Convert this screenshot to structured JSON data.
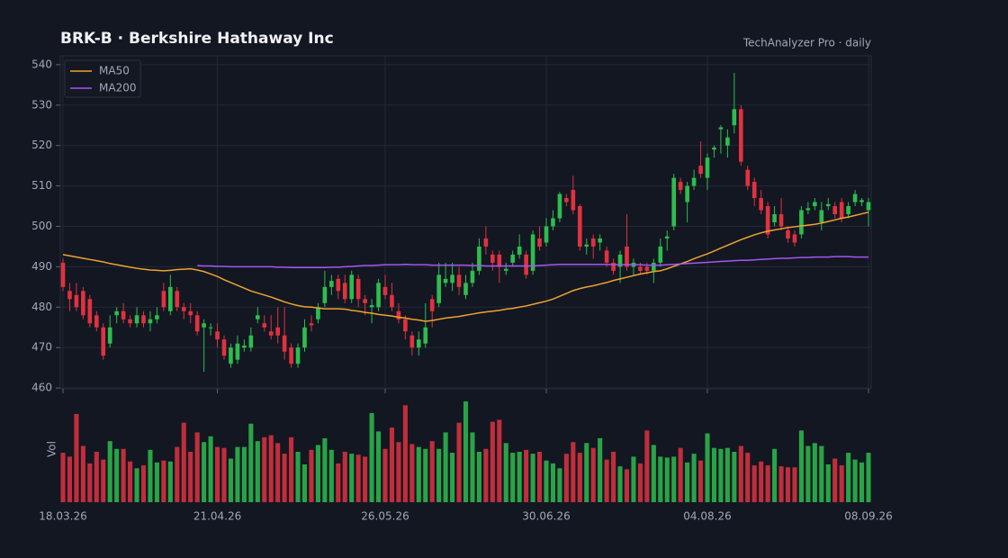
{
  "chart_data": {
    "type": "candlestick",
    "title": "BRK-B  ·  Berkshire Hathaway Inc",
    "subtitle": "TechAnalyzer Pro · daily",
    "volume_label": "Vol",
    "up_color": "#2dbd4e",
    "down_color": "#e0323f",
    "grid": true,
    "legend": "top-left",
    "ylim": [
      459.8,
      542.2
    ],
    "yticks": [
      460,
      470,
      480,
      490,
      500,
      510,
      520,
      530,
      540
    ],
    "categories": [
      "18.03.26",
      null,
      null,
      null,
      null,
      null,
      null,
      null,
      null,
      null,
      null,
      null,
      null,
      null,
      null,
      null,
      null,
      null,
      null,
      null,
      null,
      null,
      null,
      "21.04.26",
      null,
      null,
      null,
      null,
      null,
      null,
      null,
      null,
      null,
      null,
      null,
      null,
      null,
      null,
      null,
      null,
      null,
      null,
      null,
      null,
      null,
      null,
      null,
      null,
      "26.05.26",
      null,
      null,
      null,
      null,
      null,
      null,
      null,
      null,
      null,
      null,
      null,
      null,
      null,
      null,
      null,
      null,
      null,
      null,
      null,
      null,
      null,
      null,
      null,
      "30.06.26",
      null,
      null,
      null,
      null,
      null,
      null,
      null,
      null,
      null,
      null,
      null,
      null,
      null,
      null,
      null,
      null,
      null,
      null,
      null,
      null,
      null,
      null,
      null,
      "04.08.26",
      null,
      null,
      null,
      null,
      null,
      null,
      null,
      null,
      null,
      null,
      null,
      null,
      null,
      null,
      null,
      null,
      null,
      null,
      null,
      null,
      null,
      null,
      null,
      "08.09.26"
    ],
    "open": [
      491,
      484,
      483,
      484,
      482,
      478,
      475,
      471,
      478,
      479,
      477,
      476,
      478,
      476,
      477,
      484,
      479,
      484,
      480,
      479,
      478,
      475,
      475,
      474,
      472,
      466,
      467,
      470,
      470,
      477,
      476,
      474,
      475,
      473,
      470,
      466,
      470,
      476,
      477,
      481,
      485,
      487,
      486,
      482,
      487,
      482,
      480,
      480,
      485,
      483,
      479,
      477,
      473,
      470,
      471,
      482,
      481,
      486,
      486,
      488,
      483,
      486,
      489,
      497,
      493,
      493,
      489,
      491,
      493,
      493,
      489,
      497,
      496,
      500,
      502,
      507,
      509,
      505,
      495,
      497,
      496,
      494,
      491,
      490,
      495,
      490,
      490,
      490,
      489,
      491,
      497,
      500,
      511,
      506,
      510,
      515,
      512,
      519,
      524,
      520,
      525,
      529,
      514,
      511,
      507,
      505,
      501,
      503,
      499,
      498,
      498,
      504,
      505,
      501,
      505,
      505,
      506,
      503,
      506,
      506,
      504
    ],
    "high": [
      492,
      486,
      486,
      485,
      483,
      479,
      476,
      478,
      480,
      481,
      478,
      480,
      479,
      479,
      480,
      486,
      488,
      485,
      481,
      481,
      479,
      477,
      476,
      476,
      473,
      471,
      473,
      472,
      475,
      480,
      478,
      478,
      480,
      480,
      471,
      471,
      477,
      478,
      481,
      489,
      488,
      488,
      488,
      489,
      488,
      483,
      482,
      487,
      488,
      486,
      481,
      478,
      474,
      474,
      481,
      483,
      491,
      491,
      491,
      490,
      488,
      491,
      497,
      500,
      494,
      494,
      491,
      494,
      498,
      494,
      499,
      500,
      502,
      504,
      508.5,
      508,
      512.5,
      505.5,
      497,
      498,
      498,
      495,
      492,
      494,
      503,
      492,
      491,
      491,
      492,
      497,
      499,
      513,
      512,
      511,
      514,
      521,
      518,
      520,
      525,
      524,
      538,
      530,
      515,
      512,
      509,
      506,
      505,
      507,
      500,
      499,
      505,
      506,
      507,
      506,
      507,
      506,
      507,
      506,
      509,
      507,
      507
    ],
    "low": [
      484,
      479,
      479,
      477,
      475,
      474,
      467,
      470,
      476,
      476,
      475,
      475,
      475,
      474,
      476,
      479,
      478,
      479,
      477,
      476,
      473,
      464,
      473,
      470,
      467,
      465,
      466,
      469,
      469,
      476,
      474,
      472,
      471,
      467,
      465,
      465,
      469,
      474,
      476,
      480,
      483,
      482,
      481,
      481,
      480,
      478,
      476,
      479,
      482,
      479,
      476,
      472,
      468,
      468,
      470,
      475,
      480,
      485,
      484,
      483,
      482,
      485,
      488,
      493,
      489,
      486,
      488,
      490,
      492,
      487,
      488,
      494,
      495,
      499,
      501,
      505,
      503,
      494,
      493,
      492,
      494,
      490,
      488,
      486,
      489,
      488,
      488,
      488,
      486,
      490,
      494,
      499,
      508,
      501,
      509,
      512,
      509,
      517,
      518,
      517,
      523,
      515,
      509,
      505,
      503,
      497,
      500,
      499,
      496,
      495,
      497,
      503,
      504,
      499,
      504,
      502,
      501,
      502,
      505,
      505,
      500
    ],
    "close": [
      485,
      482,
      480,
      478,
      476,
      475,
      468,
      475,
      479,
      477,
      476,
      478,
      476,
      477,
      478,
      480,
      485,
      480,
      479,
      478,
      474,
      476,
      475,
      472,
      468,
      470,
      471,
      470.5,
      473,
      478,
      475,
      473,
      473,
      469,
      466,
      470,
      475,
      475.5,
      480,
      485,
      486.5,
      484,
      482,
      488,
      482,
      481,
      480.5,
      486,
      483,
      480,
      477,
      474,
      470,
      472,
      475,
      479,
      488,
      487,
      488,
      485,
      486,
      489,
      495,
      495,
      491,
      490,
      489.5,
      493,
      495,
      488,
      498,
      495,
      500,
      502,
      508,
      506,
      504,
      495,
      495.5,
      495,
      497,
      491,
      489,
      493,
      490,
      491,
      489,
      489,
      491,
      495,
      497.5,
      512,
      509,
      510,
      512,
      513,
      517,
      519.5,
      524.5,
      522,
      529,
      516,
      510,
      507,
      504,
      498,
      503,
      500,
      497,
      496,
      504,
      504.5,
      506,
      504,
      505.5,
      503,
      502,
      505,
      508,
      506.5,
      506
    ],
    "volume": [
      51,
      47,
      91,
      58,
      40,
      52,
      44,
      63,
      55,
      55,
      42,
      35,
      38,
      54,
      41,
      43,
      42,
      57,
      82,
      52,
      72,
      62,
      68,
      57,
      56,
      45,
      57,
      57,
      81,
      63,
      67,
      69,
      61,
      50,
      67,
      52,
      39,
      54,
      59,
      66,
      54,
      40,
      52,
      50,
      49,
      47,
      92,
      73,
      55,
      77,
      62,
      100,
      60,
      57,
      55,
      63,
      55,
      72,
      51,
      82,
      104,
      72,
      52,
      55,
      83,
      85,
      61,
      51,
      52,
      54,
      50,
      52,
      43,
      40,
      35,
      50,
      62,
      51,
      61,
      56,
      66,
      44,
      52,
      37,
      34,
      47,
      40,
      74,
      59,
      47,
      46,
      47,
      56,
      41,
      50,
      43,
      71,
      56,
      55,
      56,
      52,
      58,
      51,
      38,
      42,
      38,
      55,
      37,
      36,
      36,
      74,
      58,
      61,
      58,
      39,
      45,
      38,
      51,
      44,
      41,
      51
    ],
    "series": [
      {
        "name": "MA50",
        "color": "#f0a22e",
        "values": [
          493,
          492.7,
          492.4,
          492.1,
          491.8,
          491.5,
          491.2,
          490.8,
          490.5,
          490.2,
          489.9,
          489.6,
          489.4,
          489.2,
          489.1,
          489,
          489.1,
          489.3,
          489.4,
          489.5,
          489.2,
          488.8,
          488.2,
          487.6,
          486.8,
          486.1,
          485.4,
          484.7,
          484,
          483.5,
          483,
          482.5,
          481.9,
          481.3,
          480.8,
          480.4,
          480.1,
          480,
          479.8,
          479.6,
          479.6,
          479.6,
          479.5,
          479.2,
          479,
          478.7,
          478.5,
          478.2,
          478,
          477.8,
          477.5,
          477.3,
          477,
          476.8,
          476.5,
          476.7,
          477,
          477.3,
          477.5,
          477.7,
          478,
          478.3,
          478.6,
          478.8,
          479,
          479.2,
          479.5,
          479.7,
          480,
          480.3,
          480.7,
          481.1,
          481.5,
          482,
          482.7,
          483.4,
          484.1,
          484.6,
          485,
          485.3,
          485.7,
          486.1,
          486.6,
          487,
          487.4,
          487.8,
          488.2,
          488.5,
          488.8,
          489,
          489.5,
          490.1,
          490.7,
          491.3,
          492,
          492.6,
          493.2,
          493.9,
          494.6,
          495.3,
          496,
          496.7,
          497.3,
          497.9,
          498.4,
          498.8,
          499.1,
          499.4,
          499.7,
          499.9,
          500.1,
          500.3,
          500.5,
          500.8,
          501.2,
          501.6,
          502,
          502.3,
          502.7,
          503.1,
          503.5
        ]
      },
      {
        "name": "MA200",
        "color": "#a557f0",
        "values": [
          null,
          null,
          null,
          null,
          null,
          null,
          null,
          null,
          null,
          null,
          null,
          null,
          null,
          null,
          null,
          null,
          null,
          null,
          null,
          null,
          490.3,
          490.2,
          490.2,
          490.1,
          490.1,
          490,
          490,
          490,
          490,
          490,
          490,
          490,
          489.9,
          489.9,
          489.8,
          489.8,
          489.8,
          489.8,
          489.8,
          489.8,
          489.9,
          489.9,
          490,
          490.1,
          490.2,
          490.3,
          490.3,
          490.4,
          490.5,
          490.5,
          490.5,
          490.6,
          490.5,
          490.5,
          490.5,
          490.4,
          490.4,
          490.4,
          490.4,
          490.4,
          490.4,
          490.3,
          490.3,
          490.2,
          490.2,
          490.2,
          490.2,
          490.2,
          490.2,
          490.2,
          490.2,
          490.3,
          490.4,
          490.5,
          490.6,
          490.6,
          490.6,
          490.6,
          490.6,
          490.6,
          490.6,
          490.6,
          490.5,
          490.5,
          490.5,
          490.5,
          490.5,
          490.4,
          490.4,
          490.4,
          490.5,
          490.6,
          490.7,
          490.8,
          490.9,
          491,
          491.1,
          491.2,
          491.3,
          491.4,
          491.5,
          491.6,
          491.6,
          491.7,
          491.8,
          491.9,
          492,
          492.1,
          492.1,
          492.2,
          492.3,
          492.3,
          492.4,
          492.4,
          492.4,
          492.5,
          492.5,
          492.5,
          492.4,
          492.4,
          492.4
        ]
      }
    ]
  }
}
